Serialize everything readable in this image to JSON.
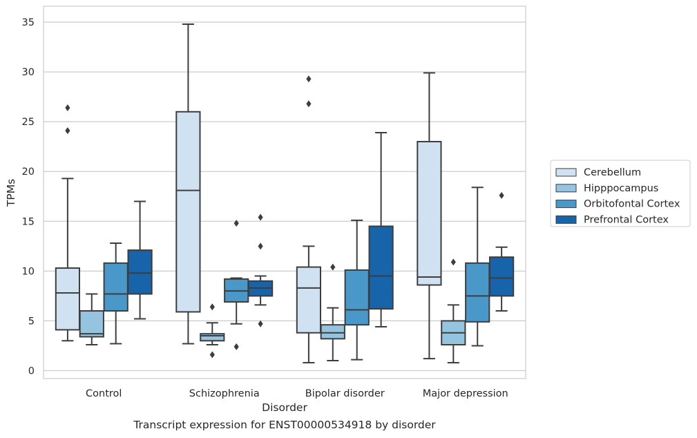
{
  "caption": "Transcript expression for ENST00000534918 by disorder",
  "chart_data": {
    "type": "box",
    "title": "",
    "xlabel": "Disorder",
    "ylabel": "TPMs",
    "ylim": [
      -0.8,
      36.6
    ],
    "yticks": [
      0,
      5,
      10,
      15,
      20,
      25,
      30,
      35
    ],
    "grid": "horizontal",
    "legend_position": "right",
    "categories": [
      "Control",
      "Schizophrenia",
      "Bipolar disorder",
      "Major depression"
    ],
    "series": [
      {
        "name": "Cerebellum",
        "color": "#d0e1f2",
        "boxes": [
          {
            "whisker_low": 3.0,
            "q1": 4.1,
            "median": 7.8,
            "q3": 10.3,
            "whisker_high": 19.3,
            "outliers": [
              24.1,
              26.4
            ]
          },
          {
            "whisker_low": 2.7,
            "q1": 5.9,
            "median": 18.1,
            "q3": 26.0,
            "whisker_high": 34.8,
            "outliers": []
          },
          {
            "whisker_low": 0.8,
            "q1": 3.8,
            "median": 8.3,
            "q3": 10.4,
            "whisker_high": 12.5,
            "outliers": [
              26.8,
              29.3
            ]
          },
          {
            "whisker_low": 1.2,
            "q1": 8.6,
            "median": 9.4,
            "q3": 23.0,
            "whisker_high": 29.9,
            "outliers": []
          }
        ]
      },
      {
        "name": "Hipppocampus",
        "color": "#94c4df",
        "boxes": [
          {
            "whisker_low": 2.6,
            "q1": 3.4,
            "median": 3.7,
            "q3": 6.0,
            "whisker_high": 7.7,
            "outliers": []
          },
          {
            "whisker_low": 2.6,
            "q1": 3.0,
            "median": 3.5,
            "q3": 3.7,
            "whisker_high": 4.8,
            "outliers": [
              1.6,
              6.4
            ]
          },
          {
            "whisker_low": 1.0,
            "q1": 3.2,
            "median": 3.8,
            "q3": 4.6,
            "whisker_high": 6.3,
            "outliers": [
              10.4
            ]
          },
          {
            "whisker_low": 0.8,
            "q1": 2.6,
            "median": 3.8,
            "q3": 5.0,
            "whisker_high": 6.6,
            "outliers": [
              10.9
            ]
          }
        ]
      },
      {
        "name": "Orbitofontal Cortex",
        "color": "#4a98c9",
        "boxes": [
          {
            "whisker_low": 2.7,
            "q1": 6.0,
            "median": 7.7,
            "q3": 10.8,
            "whisker_high": 12.8,
            "outliers": []
          },
          {
            "whisker_low": 4.7,
            "q1": 6.9,
            "median": 8.0,
            "q3": 9.2,
            "whisker_high": 9.3,
            "outliers": [
              2.4,
              14.8
            ]
          },
          {
            "whisker_low": 1.1,
            "q1": 4.6,
            "median": 6.1,
            "q3": 10.1,
            "whisker_high": 15.1,
            "outliers": []
          },
          {
            "whisker_low": 2.5,
            "q1": 4.9,
            "median": 7.5,
            "q3": 10.8,
            "whisker_high": 18.4,
            "outliers": []
          }
        ]
      },
      {
        "name": "Prefrontal Cortex",
        "color": "#1764ab",
        "boxes": [
          {
            "whisker_low": 5.2,
            "q1": 7.7,
            "median": 9.8,
            "q3": 12.1,
            "whisker_high": 17.0,
            "outliers": []
          },
          {
            "whisker_low": 6.6,
            "q1": 7.5,
            "median": 8.3,
            "q3": 9.0,
            "whisker_high": 9.5,
            "outliers": [
              4.7,
              12.5,
              15.4
            ]
          },
          {
            "whisker_low": 4.4,
            "q1": 6.2,
            "median": 9.5,
            "q3": 14.5,
            "whisker_high": 23.9,
            "outliers": []
          },
          {
            "whisker_low": 6.0,
            "q1": 7.5,
            "median": 9.3,
            "q3": 11.4,
            "whisker_high": 12.4,
            "outliers": [
              17.6
            ]
          }
        ]
      }
    ]
  }
}
